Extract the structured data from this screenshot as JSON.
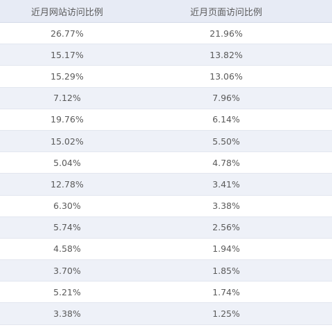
{
  "columns": [
    "近月网站访问比例",
    "近月页面访问比例"
  ],
  "rows": [
    [
      "26.77%",
      "21.96%"
    ],
    [
      "15.17%",
      "13.82%"
    ],
    [
      "15.29%",
      "13.06%"
    ],
    [
      "7.12%",
      "7.96%"
    ],
    [
      "19.76%",
      "6.14%"
    ],
    [
      "15.02%",
      "5.50%"
    ],
    [
      "5.04%",
      "4.78%"
    ],
    [
      "12.78%",
      "3.41%"
    ],
    [
      "6.30%",
      "3.38%"
    ],
    [
      "5.74%",
      "2.56%"
    ],
    [
      "4.58%",
      "1.94%"
    ],
    [
      "3.70%",
      "1.85%"
    ],
    [
      "5.21%",
      "1.74%"
    ],
    [
      "3.38%",
      "1.25%"
    ]
  ],
  "colors": {
    "header_bg": "#e7ebf5",
    "alt_row_bg": "#eef1f8",
    "row_bg": "#ffffff",
    "text": "#5a5a5a"
  }
}
